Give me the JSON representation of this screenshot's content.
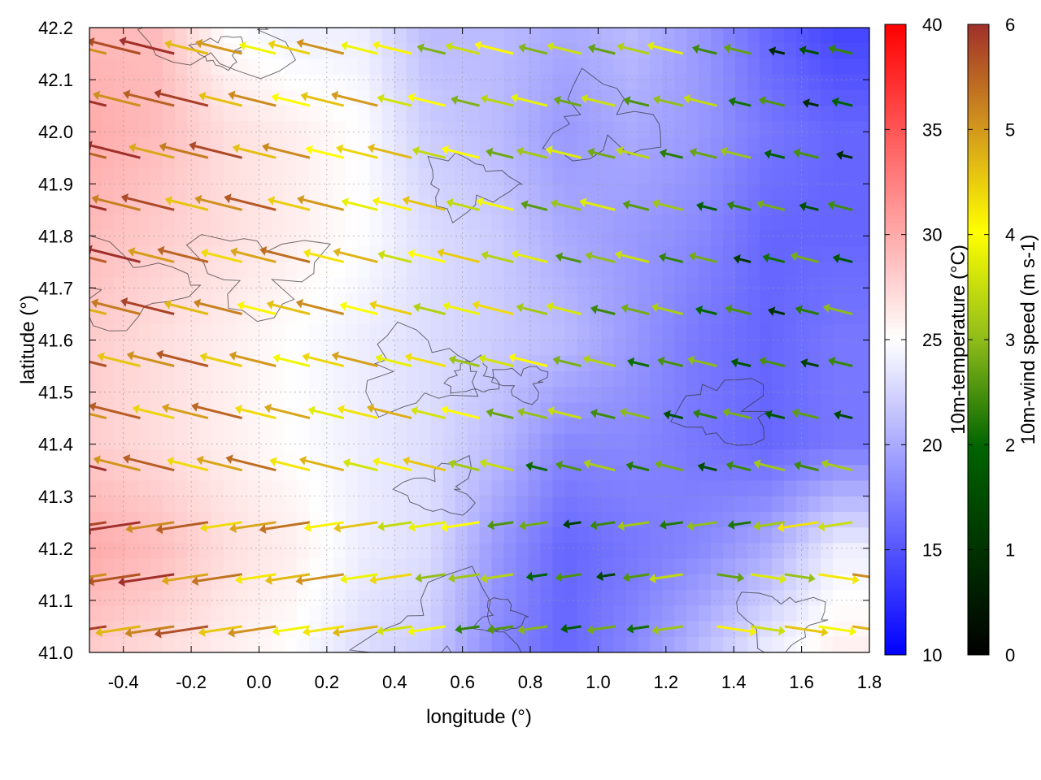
{
  "chart_data": {
    "type": "quiver-over-heatmap",
    "title": "",
    "xlabel": "longitude (°)",
    "ylabel": "latitude (°)",
    "xlim": [
      -0.5,
      1.8
    ],
    "ylim": [
      41.0,
      42.2
    ],
    "x_ticks": [
      "-0.4",
      "-0.2",
      "0.0",
      "0.2",
      "0.4",
      "0.6",
      "0.8",
      "1.0",
      "1.2",
      "1.4",
      "1.6",
      "1.8"
    ],
    "y_ticks": [
      "41.0",
      "41.1",
      "41.2",
      "41.3",
      "41.4",
      "41.5",
      "41.6",
      "41.7",
      "41.8",
      "41.9",
      "42.0",
      "42.1",
      "42.2"
    ],
    "x_tick_values": [
      -0.4,
      -0.2,
      0.0,
      0.2,
      0.4,
      0.6,
      0.8,
      1.0,
      1.2,
      1.4,
      1.6,
      1.8
    ],
    "y_tick_values": [
      41.0,
      41.1,
      41.2,
      41.3,
      41.4,
      41.5,
      41.6,
      41.7,
      41.8,
      41.9,
      42.0,
      42.1,
      42.2
    ],
    "grid": true,
    "temperature_colorbar": {
      "label": "10m-temperature (°C)",
      "range": [
        10,
        40
      ],
      "ticks": [
        "10",
        "15",
        "20",
        "25",
        "30",
        "35",
        "40"
      ],
      "tick_values": [
        10,
        15,
        20,
        25,
        30,
        35,
        40
      ],
      "colors": [
        "#0000ff",
        "#ffffff",
        "#ff0000"
      ]
    },
    "wind_colorbar": {
      "label": "10m-wind speed (m s-1)",
      "range": [
        0,
        6
      ],
      "ticks": [
        "0",
        "1",
        "2",
        "3",
        "4",
        "5",
        "6"
      ],
      "tick_values": [
        0,
        1,
        2,
        3,
        4,
        5,
        6
      ],
      "colors": [
        "#000000",
        "#006400",
        "#8fbc1a",
        "#ffff00",
        "#d49a1c",
        "#a0302a"
      ]
    },
    "temperature_field": {
      "comment": "approximate 10m-temperature (°C) sampled at lon/lat nodes",
      "lons": [
        -0.5,
        -0.3,
        -0.1,
        0.1,
        0.3,
        0.5,
        0.7,
        0.9,
        1.1,
        1.3,
        1.5,
        1.7
      ],
      "lats": [
        42.2,
        42.0,
        41.8,
        41.6,
        41.4,
        41.2,
        41.0
      ],
      "values": [
        [
          29,
          29,
          25,
          24,
          24,
          21,
          21,
          20,
          21,
          19,
          16,
          14
        ],
        [
          30,
          29,
          27,
          26,
          25,
          22,
          21,
          19,
          20,
          19,
          17,
          16
        ],
        [
          29,
          28,
          27,
          26,
          25,
          23,
          22,
          20,
          19,
          18,
          16,
          16
        ],
        [
          28,
          27,
          26,
          25,
          24,
          23,
          22,
          21,
          19,
          17,
          16,
          17
        ],
        [
          28,
          27,
          26,
          25,
          24,
          23,
          21,
          18,
          18,
          17,
          16,
          17
        ],
        [
          30,
          29,
          27,
          26,
          24,
          23,
          19,
          16,
          17,
          18,
          20,
          24
        ],
        [
          28,
          27,
          26,
          25,
          23,
          22,
          18,
          16,
          18,
          21,
          24,
          26
        ]
      ]
    },
    "wind_field": {
      "comment": "approximate 10m wind components u,v (m/s) at sampled lon/lat nodes",
      "lons": [
        -0.45,
        -0.35,
        -0.25,
        -0.15,
        -0.05,
        0.05,
        0.15,
        0.25,
        0.35,
        0.45,
        0.55,
        0.65,
        0.75,
        0.85,
        0.95,
        1.05,
        1.15,
        1.25,
        1.35,
        1.45,
        1.55,
        1.65,
        1.75
      ],
      "lats": [
        42.15,
        42.05,
        41.95,
        41.85,
        41.75,
        41.65,
        41.55,
        41.45,
        41.35,
        41.25,
        41.15,
        41.05
      ],
      "u_base": -6,
      "v_base": 1.5
    },
    "contour_count": 14
  }
}
